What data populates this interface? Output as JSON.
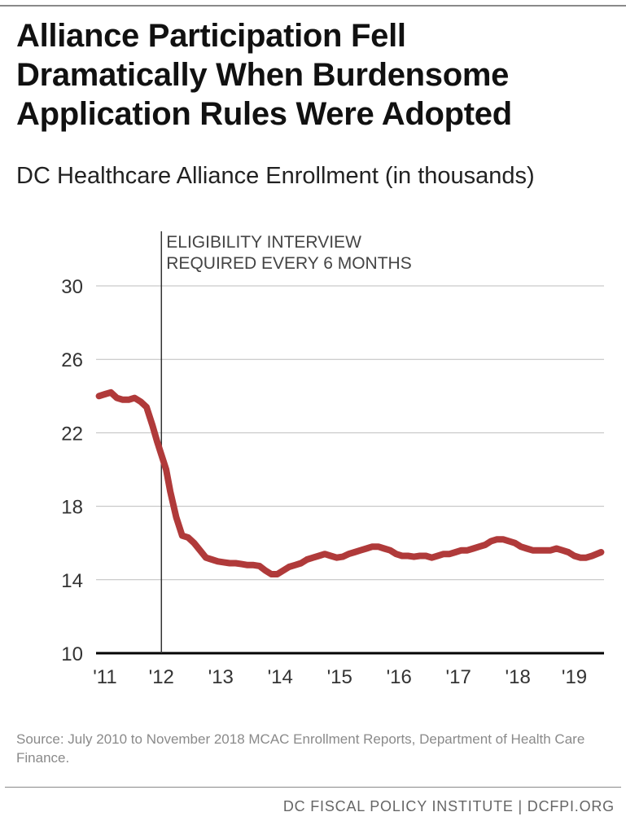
{
  "header": {
    "title_lines": [
      "Alliance Participation Fell",
      "Dramatically When Burdensome",
      "Application Rules Were Adopted"
    ],
    "subtitle": "DC Healthcare Alliance Enrollment (in thousands)"
  },
  "chart_data": {
    "type": "line",
    "title": "Alliance Participation Fell Dramatically When Burdensome Application Rules Were Adopted",
    "subtitle": "DC Healthcare Alliance Enrollment (in thousands)",
    "xlabel": "",
    "ylabel": "",
    "ylim": [
      10,
      30
    ],
    "yticks": [
      10,
      14,
      18,
      22,
      26,
      30
    ],
    "ytick_labels": [
      "10",
      "14",
      "18",
      "22",
      "26",
      "30"
    ],
    "xlim": [
      2010.9,
      2019.45
    ],
    "xticks": [
      2011.05,
      2012.0,
      2013.0,
      2014.0,
      2015.0,
      2016.0,
      2017.0,
      2018.0,
      2018.95
    ],
    "xtick_labels": [
      "'11",
      "'12",
      "'13",
      "'14",
      "'15",
      "'16",
      "'17",
      "'18",
      "'19"
    ],
    "grid": true,
    "color": "#b03a3a",
    "annotation": {
      "x": 2012.0,
      "lines": [
        "ELIGIBILITY INTERVIEW",
        "REQUIRED EVERY 6 MONTHS"
      ]
    },
    "series": [
      {
        "x": [
          2010.95,
          2011.05,
          2011.15,
          2011.25,
          2011.35,
          2011.45,
          2011.55,
          2011.65,
          2011.75,
          2011.85,
          2011.93,
          2012.0,
          2012.08,
          2012.15,
          2012.25,
          2012.35,
          2012.45,
          2012.55,
          2012.65,
          2012.75,
          2012.85,
          2012.95,
          2013.05,
          2013.15,
          2013.25,
          2013.35,
          2013.45,
          2013.55,
          2013.65,
          2013.75,
          2013.85,
          2013.95,
          2014.05,
          2014.15,
          2014.25,
          2014.35,
          2014.45,
          2014.55,
          2014.65,
          2014.75,
          2014.85,
          2014.95,
          2015.05,
          2015.15,
          2015.25,
          2015.35,
          2015.45,
          2015.55,
          2015.65,
          2015.75,
          2015.85,
          2015.95,
          2016.05,
          2016.15,
          2016.25,
          2016.35,
          2016.45,
          2016.55,
          2016.65,
          2016.75,
          2016.85,
          2016.95,
          2017.05,
          2017.15,
          2017.25,
          2017.35,
          2017.45,
          2017.55,
          2017.65,
          2017.75,
          2017.85,
          2017.95,
          2018.05,
          2018.15,
          2018.25,
          2018.35,
          2018.45,
          2018.55,
          2018.65,
          2018.75,
          2018.85,
          2018.95,
          2019.05,
          2019.15,
          2019.25,
          2019.4
        ],
        "y": [
          24.0,
          24.1,
          24.2,
          23.9,
          23.8,
          23.8,
          23.9,
          23.7,
          23.4,
          22.4,
          21.5,
          20.8,
          20.0,
          18.8,
          17.4,
          16.4,
          16.3,
          16.0,
          15.6,
          15.2,
          15.1,
          15.0,
          14.95,
          14.9,
          14.9,
          14.85,
          14.8,
          14.8,
          14.75,
          14.5,
          14.3,
          14.3,
          14.5,
          14.7,
          14.8,
          14.9,
          15.1,
          15.2,
          15.3,
          15.4,
          15.3,
          15.2,
          15.25,
          15.4,
          15.5,
          15.6,
          15.7,
          15.8,
          15.8,
          15.7,
          15.6,
          15.4,
          15.3,
          15.3,
          15.25,
          15.3,
          15.3,
          15.2,
          15.3,
          15.4,
          15.4,
          15.5,
          15.6,
          15.6,
          15.7,
          15.8,
          15.9,
          16.1,
          16.2,
          16.2,
          16.1,
          16.0,
          15.8,
          15.7,
          15.6,
          15.6,
          15.6,
          15.6,
          15.7,
          15.6,
          15.5,
          15.3,
          15.2,
          15.2,
          15.3,
          15.5
        ]
      }
    ]
  },
  "source": "Source: July 2010 to November 2018 MCAC Enrollment Reports, Department of Health Care Finance.",
  "footer": "DC FISCAL POLICY INSTITUTE | DCFPI.ORG"
}
